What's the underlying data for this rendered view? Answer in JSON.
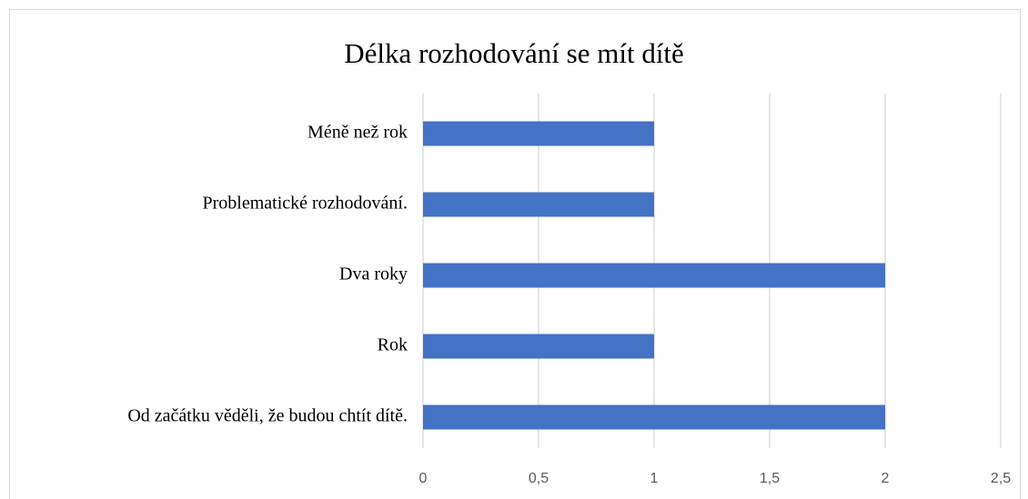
{
  "chart_data": {
    "type": "bar",
    "orientation": "horizontal",
    "title": "Délka rozhodování se mít dítě",
    "categories": [
      "Méně než rok",
      "Problematické rozhodování.",
      "Dva roky",
      "Rok",
      "Od začátku věděli, že budou chtít dítě."
    ],
    "values": [
      1,
      1,
      2,
      1,
      2
    ],
    "color": "#4472c4",
    "xlim": [
      0,
      2.5
    ],
    "xticks": [
      0,
      {
        "value": 0.5,
        "label": "0,5"
      },
      1,
      {
        "value": 1.5,
        "label": "1,5"
      },
      2,
      {
        "value": 2.5,
        "label": "2,5"
      }
    ],
    "grid": true
  }
}
